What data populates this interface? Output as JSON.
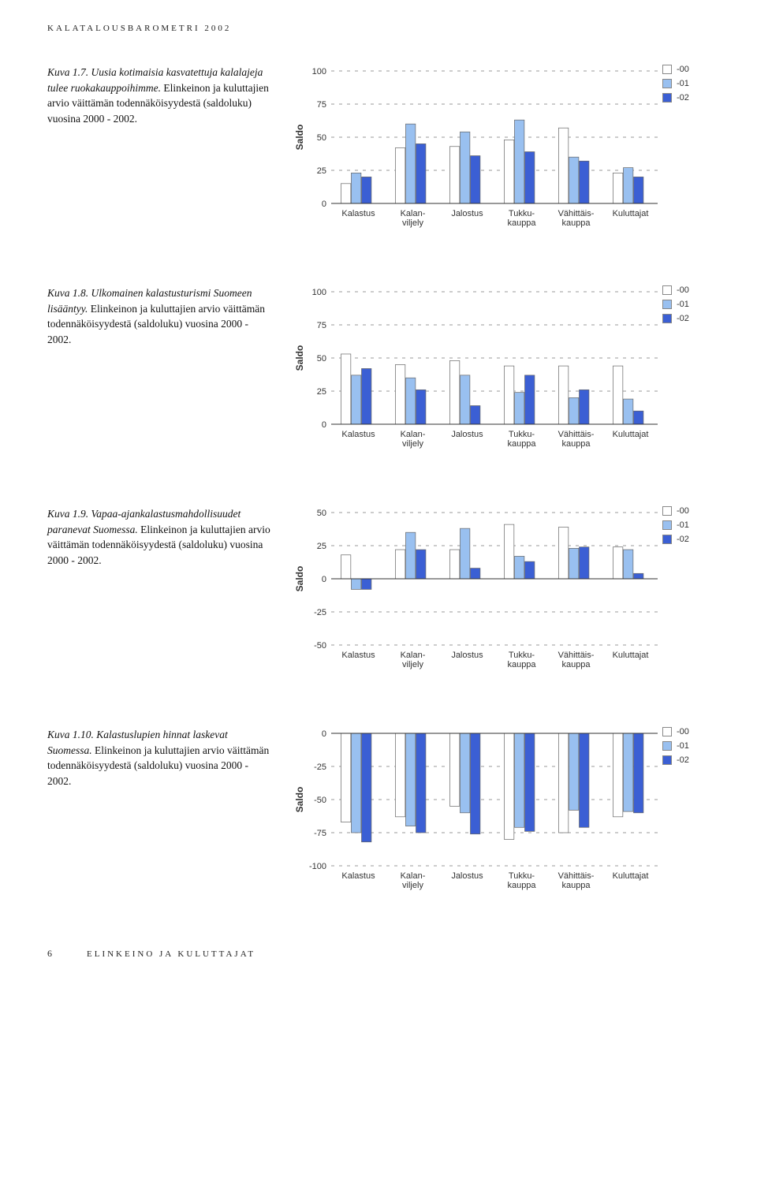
{
  "header": "KALATALOUSBAROMETRI 2002",
  "footer": {
    "page": "6",
    "section": "ELINKEINO JA KULUTTAJAT"
  },
  "categories": [
    "Kalastus",
    "Kalan-\nviljely",
    "Jalostus",
    "Tukku-\nkauppa",
    "Vähittäis-\nkauppa",
    "Kuluttajat"
  ],
  "legend_labels": [
    "-00",
    "-01",
    "-02"
  ],
  "colors": {
    "s0": "#ffffff",
    "s1": "#99c0f0",
    "s2": "#3b5fd4",
    "border": "#777",
    "grid": "#999"
  },
  "charts": [
    {
      "id": "kuva17",
      "caption_num": "Kuva 1.7. Uusia kotimaisia kasvatettuja kalalajeja tulee ruokakauppoihimme.",
      "caption_rest": " Elinkeinon ja kuluttajien arvio väittämän todennäköisyydestä (saldoluku) vuosina 2000 - 2002.",
      "ylim": [
        0,
        100
      ],
      "ytick_step": 25,
      "ylabel": "Saldo",
      "series": [
        [
          15,
          42,
          43,
          48,
          57,
          23
        ],
        [
          23,
          60,
          54,
          63,
          35,
          27
        ],
        [
          20,
          45,
          36,
          39,
          32,
          20
        ]
      ]
    },
    {
      "id": "kuva18",
      "caption_num": "Kuva 1.8. Ulkomainen kalastusturismi Suomeen lisääntyy.",
      "caption_rest": " Elinkeinon ja kuluttajien arvio väittämän todennäköisyydestä (saldoluku) vuosina 2000 - 2002.",
      "ylim": [
        0,
        100
      ],
      "ytick_step": 25,
      "ylabel": "Saldo",
      "series": [
        [
          53,
          45,
          48,
          44,
          44,
          44
        ],
        [
          37,
          35,
          37,
          24,
          20,
          19
        ],
        [
          42,
          26,
          14,
          37,
          26,
          10
        ]
      ]
    },
    {
      "id": "kuva19",
      "caption_num": "Kuva 1.9. Vapaa-ajankalastusmahdollisuudet paranevat Suomessa.",
      "caption_rest": " Elinkeinon ja kuluttajien arvio väittämän todennäköisyydestä (saldoluku) vuosina 2000 - 2002.",
      "ylim": [
        -50,
        50
      ],
      "ytick_step": 25,
      "ylabel": "Saldo",
      "series": [
        [
          18,
          22,
          22,
          41,
          39,
          24
        ],
        [
          -8,
          35,
          38,
          17,
          23,
          22
        ],
        [
          -8,
          22,
          8,
          13,
          24,
          4
        ]
      ]
    },
    {
      "id": "kuva110",
      "caption_num": "Kuva 1.10. Kalastuslupien hinnat laskevat Suomessa.",
      "caption_rest": " Elinkeinon ja kuluttajien arvio väittämän todennäköisyydestä (saldoluku) vuosina 2000 - 2002.",
      "ylim": [
        -100,
        0
      ],
      "ytick_step": 25,
      "ylabel": "Saldo",
      "series": [
        [
          -67,
          -63,
          -55,
          -80,
          -75,
          -63
        ],
        [
          -75,
          -70,
          -60,
          -71,
          -58,
          -59
        ],
        [
          -82,
          -75,
          -76,
          -74,
          -71,
          -60
        ]
      ]
    }
  ]
}
